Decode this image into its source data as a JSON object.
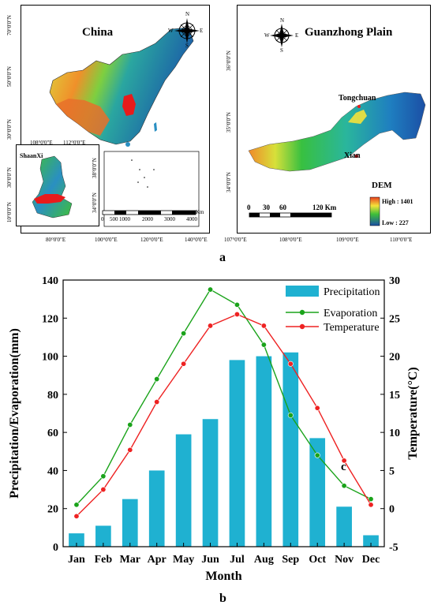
{
  "figure": {
    "panel_a_label": "a",
    "panel_b_label": "b",
    "panel_c_label": "c"
  },
  "china_map": {
    "title": "China",
    "x_ticks": [
      "80°0'0\"E",
      "100°0'0\"E",
      "120°0'0\"E",
      "140°0'0\"E"
    ],
    "y_ticks": [
      "70°0'0\"N",
      "50°0'0\"N",
      "30°0'0\"N",
      "10°0'0\"N"
    ],
    "compass": {
      "n": "N",
      "s": "S",
      "e": "E",
      "w": "W"
    },
    "scale": {
      "labels": [
        "0",
        "500",
        "1000",
        "2000",
        "3000",
        "4000"
      ],
      "unit": "Km"
    },
    "inset": {
      "title": "ShaanXi",
      "x_ticks": [
        "108°0'0\"E",
        "112°0'0\"E"
      ],
      "y_ticks": [
        "38°0'0\"N",
        "34°0'0\"N"
      ],
      "left_ticks": [
        "30°0'0\"N",
        "10°0'0\"N"
      ]
    }
  },
  "guanzhong_map": {
    "title": "Guanzhong Plain",
    "x_ticks": [
      "107°0'0\"E",
      "108°0'0\"E",
      "109°0'0\"E",
      "110°0'0\"E"
    ],
    "y_ticks": [
      "36°0'0\"N",
      "35°0'0\"N",
      "34°0'0\"N"
    ],
    "compass": {
      "n": "N",
      "s": "S",
      "e": "E",
      "w": "W"
    },
    "cities": [
      {
        "name": "Tongchuan"
      },
      {
        "name": "Xian"
      }
    ],
    "scale": {
      "labels": [
        "0",
        "30",
        "60",
        "120 Km"
      ]
    },
    "legend": {
      "title": "DEM",
      "high": "High : 1401",
      "low": "Low : 227"
    }
  },
  "chart_data": {
    "type": "bar",
    "categories": [
      "Jan",
      "Feb",
      "Mar",
      "Apr",
      "May",
      "Jun",
      "Jul",
      "Aug",
      "Sep",
      "Oct",
      "Nov",
      "Dec"
    ],
    "xlabel": "Month",
    "ylabel": "Precipitation/Evaporation(mm)",
    "ylabel_right": "Temperature(°C)",
    "ylim": [
      0,
      140
    ],
    "ylim_right": [
      -5,
      30
    ],
    "yticks": [
      "0",
      "20",
      "40",
      "60",
      "80",
      "100",
      "120",
      "140"
    ],
    "yticks_right": [
      "-5",
      "0",
      "5",
      "10",
      "15",
      "20",
      "25",
      "30"
    ],
    "legend_position": "top-right",
    "series": [
      {
        "name": "Precipitation",
        "type": "bar",
        "axis": "left",
        "color": "#1fb1d1",
        "values": [
          7,
          11,
          25,
          40,
          59,
          67,
          98,
          100,
          102,
          57,
          21,
          6
        ]
      },
      {
        "name": "Evaporation",
        "type": "line",
        "axis": "left",
        "color": "#1aa31a",
        "values": [
          22,
          37,
          64,
          88,
          112,
          135,
          127,
          106,
          69,
          48,
          32,
          25
        ]
      },
      {
        "name": "Temperature",
        "type": "line",
        "axis": "right",
        "color": "#ee2222",
        "values": [
          -1,
          2.5,
          7.7,
          14,
          19,
          24,
          25.5,
          24,
          19,
          13.2,
          6.3,
          0.5
        ]
      }
    ]
  }
}
